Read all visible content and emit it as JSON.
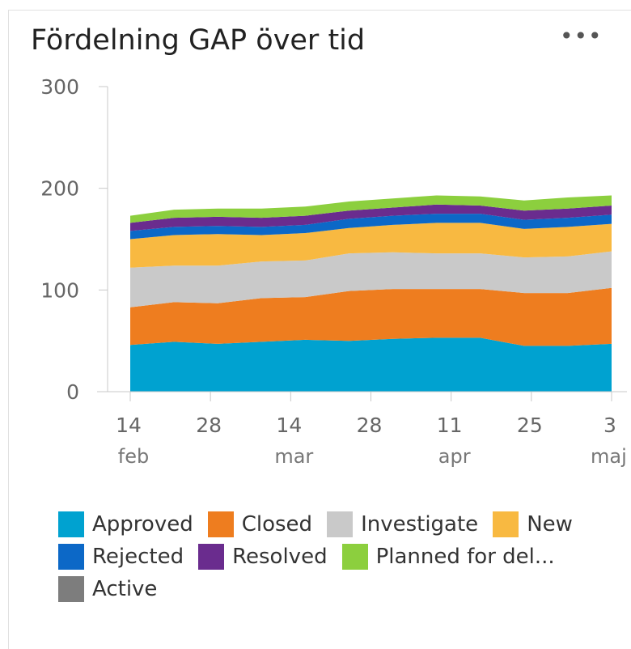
{
  "widget": {
    "title": "Fördelning GAP över tid",
    "menu_label": "•••"
  },
  "chart_data": {
    "type": "area",
    "stacked": true,
    "title": "Fördelning GAP över tid",
    "xlabel": "",
    "ylabel": "",
    "ylim": [
      0,
      300
    ],
    "y_ticks": [
      "0",
      "100",
      "200",
      "300"
    ],
    "x_ticks": [
      {
        "day": "14",
        "month": "feb"
      },
      {
        "day": "28",
        "month": ""
      },
      {
        "day": "14",
        "month": "mar"
      },
      {
        "day": "28",
        "month": ""
      },
      {
        "day": "11",
        "month": "apr"
      },
      {
        "day": "25",
        "month": ""
      },
      {
        "day": "3",
        "month": "maj"
      }
    ],
    "x": [
      "2019-02-14",
      "2019-02-21",
      "2019-02-28",
      "2019-03-07",
      "2019-03-14",
      "2019-03-21",
      "2019-03-28",
      "2019-04-04",
      "2019-04-11",
      "2019-04-18",
      "2019-04-25",
      "2019-05-02"
    ],
    "series": [
      {
        "name": "Approved",
        "color": "#00a2d0",
        "values": [
          46,
          49,
          47,
          49,
          51,
          50,
          52,
          53,
          53,
          45,
          45,
          47
        ]
      },
      {
        "name": "Closed",
        "color": "#ee7d1f",
        "values": [
          37,
          39,
          40,
          43,
          42,
          49,
          49,
          48,
          48,
          52,
          52,
          55
        ]
      },
      {
        "name": "Investigate",
        "color": "#c9c9c9",
        "values": [
          39,
          36,
          37,
          36,
          36,
          37,
          36,
          35,
          35,
          35,
          36,
          36
        ]
      },
      {
        "name": "New",
        "color": "#f8b941",
        "values": [
          28,
          30,
          31,
          26,
          27,
          25,
          27,
          30,
          30,
          28,
          29,
          27
        ]
      },
      {
        "name": "Rejected",
        "color": "#0c68c7",
        "values": [
          8,
          8,
          8,
          8,
          8,
          9,
          9,
          9,
          9,
          9,
          9,
          9
        ]
      },
      {
        "name": "Resolved",
        "color": "#6a2c8e",
        "values": [
          8,
          9,
          9,
          9,
          9,
          8,
          8,
          9,
          8,
          9,
          9,
          9
        ]
      },
      {
        "name": "Planned for del...",
        "color": "#8ccf3e",
        "values": [
          7,
          8,
          8,
          9,
          9,
          9,
          9,
          9,
          9,
          10,
          11,
          10
        ]
      },
      {
        "name": "Active",
        "color": "#7d7d7d",
        "values": [
          0,
          0,
          0,
          0,
          0,
          0,
          0,
          0,
          0,
          0,
          0,
          0
        ]
      }
    ],
    "legend_position": "bottom",
    "grid": false
  }
}
